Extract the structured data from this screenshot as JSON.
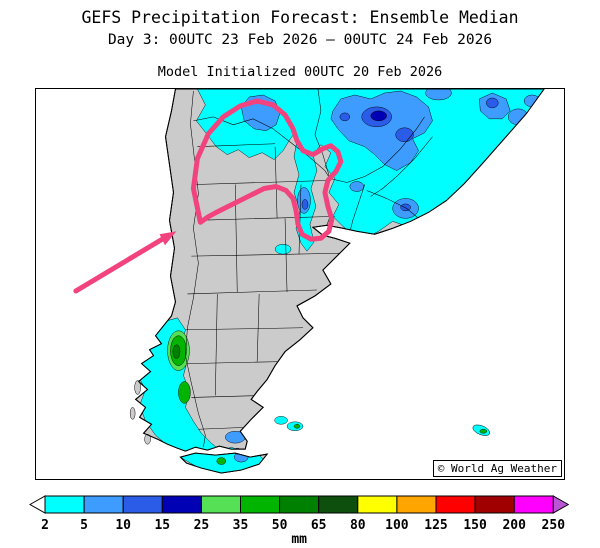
{
  "header": {
    "title": "GEFS Precipitation Forecast: Ensemble Median",
    "date_line": "Day 3: 00UTC 23 Feb 2026 — 00UTC 24 Feb 2026",
    "init_line": "Model Initialized 00UTC 20 Feb 2026"
  },
  "map": {
    "watermark": "© World Ag Weather",
    "land_color": "#CBCBCB",
    "ocean_color": "#FFFFFF",
    "annotation_color": "#F2437E"
  },
  "colorbar": {
    "unit": "mm",
    "tick_labels": [
      "2",
      "5",
      "10",
      "15",
      "25",
      "35",
      "50",
      "65",
      "80",
      "100",
      "125",
      "150",
      "200",
      "250"
    ],
    "segment_colors": [
      "#00FFFF",
      "#3E9CFF",
      "#2A5CE8",
      "#0000B4",
      "#55E055",
      "#00B400",
      "#008000",
      "#0E4F0E",
      "#FFFF00",
      "#FFA500",
      "#FF0000",
      "#A00000",
      "#FF00FF"
    ],
    "under_range_color": "#FFFFFF",
    "over_range_color": "#BA55D3"
  }
}
